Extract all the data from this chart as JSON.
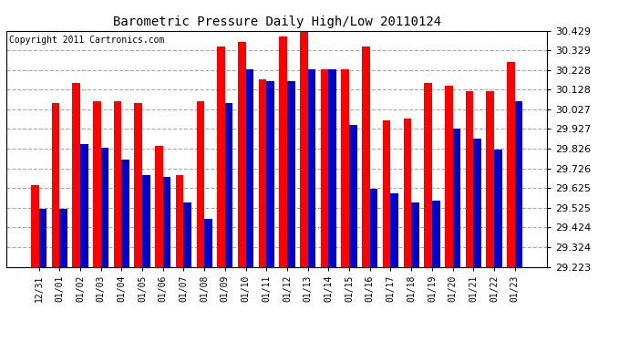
{
  "title": "Barometric Pressure Daily High/Low 20110124",
  "copyright": "Copyright 2011 Cartronics.com",
  "labels": [
    "12/31",
    "01/01",
    "01/02",
    "01/03",
    "01/04",
    "01/05",
    "01/06",
    "01/07",
    "01/08",
    "01/09",
    "01/10",
    "01/11",
    "01/12",
    "01/13",
    "01/14",
    "01/15",
    "01/16",
    "01/17",
    "01/18",
    "01/19",
    "01/20",
    "01/21",
    "01/22",
    "01/23"
  ],
  "highs": [
    29.64,
    30.06,
    30.16,
    30.07,
    30.07,
    30.06,
    29.84,
    29.69,
    30.07,
    30.35,
    30.37,
    30.18,
    30.4,
    30.43,
    30.23,
    30.23,
    30.35,
    29.97,
    29.98,
    30.16,
    30.15,
    30.12,
    30.12,
    30.27
  ],
  "lows": [
    29.52,
    29.52,
    29.85,
    29.83,
    29.77,
    29.69,
    29.68,
    29.55,
    29.47,
    30.06,
    30.23,
    30.17,
    30.17,
    30.23,
    30.23,
    29.95,
    29.62,
    29.6,
    29.55,
    29.56,
    29.93,
    29.88,
    29.82,
    30.07
  ],
  "high_color": "#ff0000",
  "low_color": "#0000cc",
  "bg_color": "#ffffff",
  "grid_color": "#aaaaaa",
  "ymin": 29.223,
  "ymax": 30.429,
  "yticks": [
    29.223,
    29.324,
    29.424,
    29.525,
    29.625,
    29.726,
    29.826,
    29.927,
    30.027,
    30.128,
    30.228,
    30.329,
    30.429
  ]
}
